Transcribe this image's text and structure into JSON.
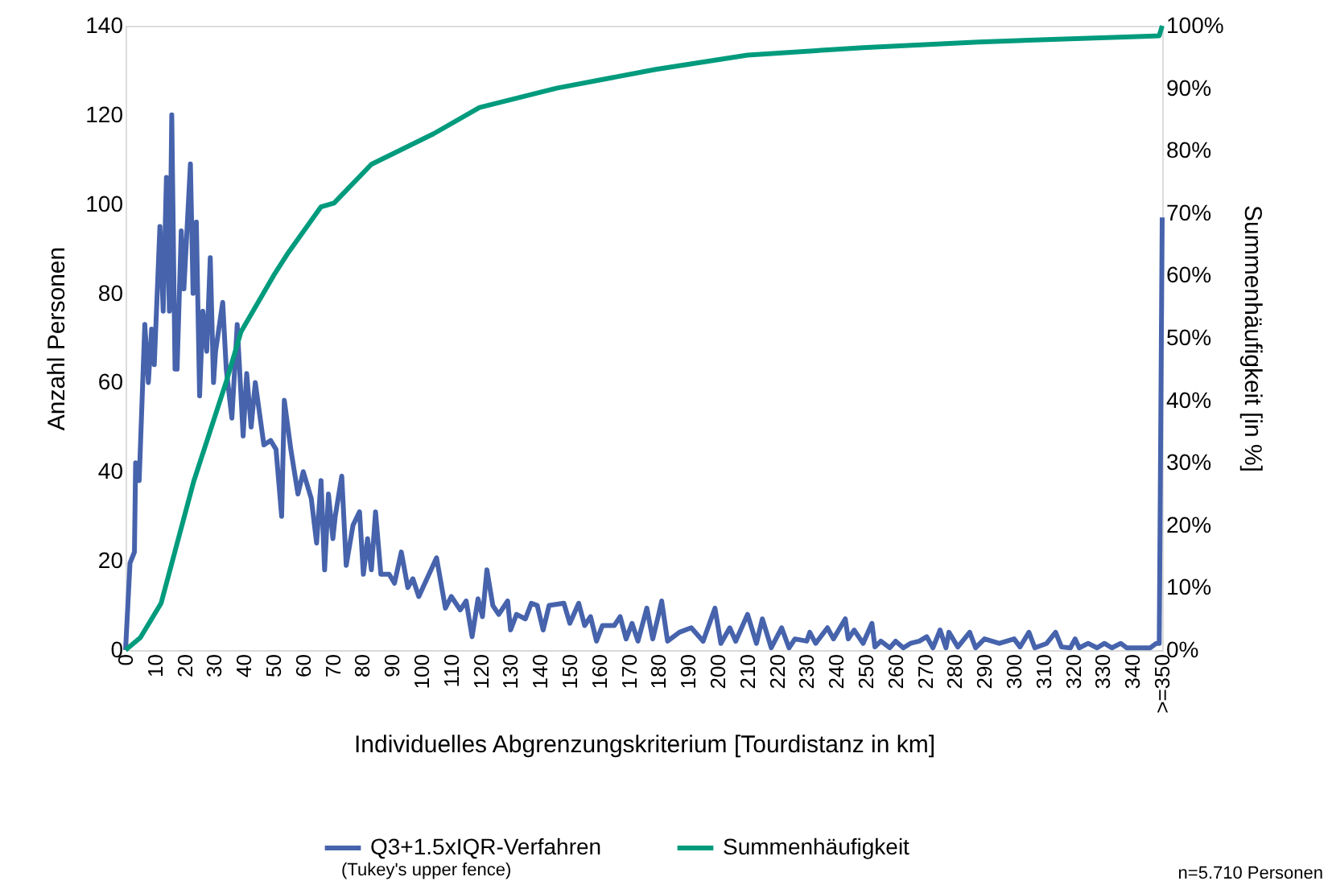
{
  "chart_data": {
    "type": "line",
    "xlabel": "Individuelles Abgrenzungskriterium [Tourdistanz in km]",
    "ylabel": "Anzahl Personen",
    "y2label": "Summenhäufigkeit [in %]",
    "xlim": [
      0,
      350
    ],
    "xticks": [
      0,
      10,
      20,
      30,
      40,
      50,
      60,
      70,
      80,
      90,
      100,
      110,
      120,
      130,
      140,
      150,
      160,
      170,
      180,
      190,
      200,
      210,
      220,
      230,
      240,
      250,
      260,
      270,
      280,
      290,
      300,
      310,
      320,
      330,
      340,
      {
        "value": 350,
        "label": ">=350"
      }
    ],
    "ylim": [
      0,
      140
    ],
    "yticks": [
      0,
      20,
      40,
      60,
      80,
      100,
      120,
      140
    ],
    "y2lim": [
      0,
      100
    ],
    "y2ticks": [
      {
        "value": 0,
        "label": "0%"
      },
      {
        "value": 10,
        "label": "10%"
      },
      {
        "value": 20,
        "label": "20%"
      },
      {
        "value": 30,
        "label": "30%"
      },
      {
        "value": 40,
        "label": "40%"
      },
      {
        "value": 50,
        "label": "50%"
      },
      {
        "value": 60,
        "label": "60%"
      },
      {
        "value": 70,
        "label": "70%"
      },
      {
        "value": 80,
        "label": "80%"
      },
      {
        "value": 90,
        "label": "90%"
      },
      {
        "value": 100,
        "label": "100%"
      }
    ],
    "grid": false,
    "legend": "bottom",
    "marker": "none",
    "line_style": "solid",
    "annotations": [
      "(Tukey's upper fence)",
      "n=5.710  Personen"
    ],
    "series": [
      {
        "name": "Q3+1.5xIQR-Verfahren",
        "color": "#4663ac",
        "axis": "y",
        "x": [
          0,
          1.5,
          3,
          3.4,
          4.6,
          6.5,
          7.7,
          8.8,
          9.7,
          11.6,
          12.7,
          13.8,
          14.8,
          15.6,
          16.7,
          17.4,
          18.8,
          19.7,
          21.9,
          22.8,
          23.9,
          25,
          26.1,
          27.4,
          28.6,
          29.7,
          30.4,
          32.8,
          34,
          35.9,
          37.7,
          39.7,
          40.9,
          42.4,
          43.8,
          46.7,
          49,
          50.8,
          52.7,
          53.6,
          55.8,
          58.2,
          60,
          62.7,
          64.5,
          66,
          67.2,
          68.5,
          70,
          70.8,
          73,
          74.5,
          76.8,
          79,
          80.3,
          81.7,
          83,
          84.4,
          86.2,
          89,
          90.8,
          93.1,
          95.3,
          97,
          99,
          105,
          108,
          110,
          113,
          115,
          117,
          119,
          120.5,
          122,
          124,
          126,
          129,
          130,
          132,
          135,
          137,
          139,
          141,
          143,
          148,
          150,
          153,
          155,
          157,
          159,
          161,
          165,
          167,
          169,
          171,
          173,
          176,
          178,
          180,
          181,
          183,
          187,
          191,
          195,
          199,
          201,
          204,
          206,
          210,
          213,
          215,
          218,
          221.5,
          224,
          226,
          230,
          231,
          233,
          237,
          239,
          243,
          244,
          246,
          249,
          252,
          253,
          255,
          258,
          260,
          262.6,
          265,
          268,
          270.5,
          272.6,
          275,
          277,
          278,
          281,
          285,
          287,
          290,
          295,
          300,
          302,
          305,
          307,
          311,
          314,
          316,
          319,
          320.6,
          322,
          325,
          328,
          330.5,
          333,
          336,
          338,
          346,
          348,
          349,
          350
        ],
        "values": [
          0,
          19.5,
          22,
          42,
          38,
          73,
          60,
          72,
          64,
          95,
          76,
          106,
          76,
          120,
          63,
          63,
          94,
          81,
          109,
          80,
          96,
          57,
          76,
          67,
          88,
          60,
          67,
          78,
          63,
          52,
          73,
          48,
          62,
          50,
          60,
          46,
          47,
          45,
          30,
          56,
          45,
          35,
          40,
          34,
          24,
          38,
          18,
          35,
          25,
          30,
          39,
          19,
          28,
          31,
          17,
          25,
          18,
          31,
          17,
          17,
          15,
          22,
          14,
          16,
          12,
          20.7,
          9.4,
          12,
          9,
          11,
          3,
          11.5,
          7.5,
          18,
          10,
          8,
          11,
          4.5,
          8,
          7,
          10.5,
          10,
          4.5,
          10,
          10.5,
          6,
          10.5,
          5.5,
          7.5,
          2,
          5.5,
          5.5,
          7.5,
          2.5,
          6,
          2,
          9.4,
          2.5,
          8,
          11,
          2,
          4,
          5,
          2,
          9.4,
          1.5,
          5,
          2,
          8,
          1.5,
          7,
          0.5,
          5,
          0.5,
          2.5,
          2,
          4,
          1.5,
          5,
          2.5,
          7,
          2.5,
          4.5,
          1.5,
          6,
          0.7,
          2,
          0.5,
          2,
          0.5,
          1.5,
          2,
          3,
          0.5,
          4.5,
          0.5,
          4,
          0.7,
          4,
          0.5,
          2.5,
          1.5,
          2.5,
          0.7,
          4,
          0.5,
          1.5,
          4,
          0.7,
          0.5,
          2.5,
          0.5,
          1.5,
          0.5,
          1.5,
          0.5,
          1.5,
          0.5,
          0.5,
          1.5,
          1.5,
          97
        ]
      },
      {
        "name": "Summenhäufigkeit",
        "color": "#009b7d",
        "axis": "y2",
        "x": [
          0,
          5,
          12,
          23,
          34,
          39,
          50,
          55,
          66,
          70.4,
          83,
          104,
          119.5,
          145.5,
          179,
          210,
          249,
          288,
          343.5,
          349,
          350
        ],
        "values": [
          0,
          2,
          7.5,
          27,
          43,
          51,
          60,
          63.7,
          71,
          71.6,
          77.8,
          82.7,
          86.9,
          90,
          93,
          95.3,
          96.5,
          97.4,
          98.3,
          98.4,
          100
        ]
      }
    ]
  }
}
